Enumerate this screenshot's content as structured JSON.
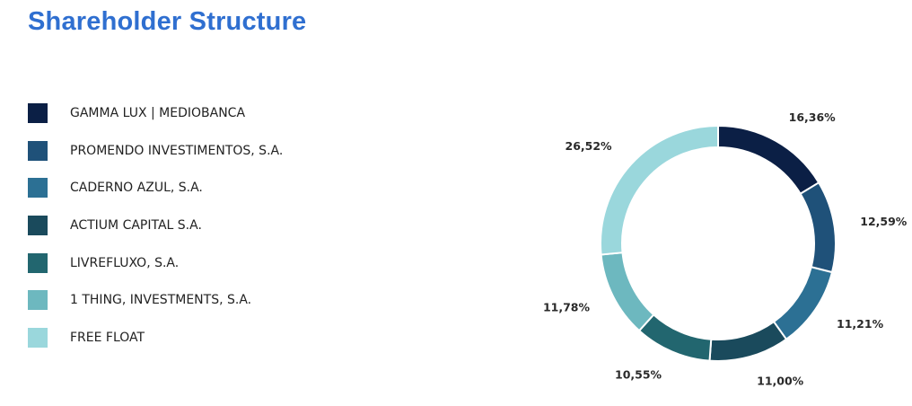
{
  "header": {
    "title": "Shareholder Structure"
  },
  "chart_data": {
    "type": "pie",
    "variant": "donut",
    "title": "Shareholder Structure",
    "legend_position": "left",
    "slices": [
      {
        "label": "GAMMA LUX | MEDIOBANCA",
        "value": 16.36,
        "display": "16,36%",
        "color": "#0b1f45"
      },
      {
        "label": "PROMENDO INVESTIMENTOS, S.A.",
        "value": 12.59,
        "display": "12,59%",
        "color": "#1f5179"
      },
      {
        "label": "CADERNO AZUL, S.A.",
        "value": 11.21,
        "display": "11,21%",
        "color": "#2c7094"
      },
      {
        "label": "ACTIUM CAPITAL S.A.",
        "value": 11.0,
        "display": "11,00%",
        "color": "#1a4a5c"
      },
      {
        "label": "LIVREFLUXO, S.A.",
        "value": 10.55,
        "display": "10,55%",
        "color": "#22666f"
      },
      {
        "label": "1 THING, INVESTMENTS, S.A.",
        "value": 11.78,
        "display": "11,78%",
        "color": "#6db8bf"
      },
      {
        "label": "FREE FLOAT",
        "value": 26.52,
        "display": "26,52%",
        "color": "#9ad7dc"
      }
    ]
  }
}
